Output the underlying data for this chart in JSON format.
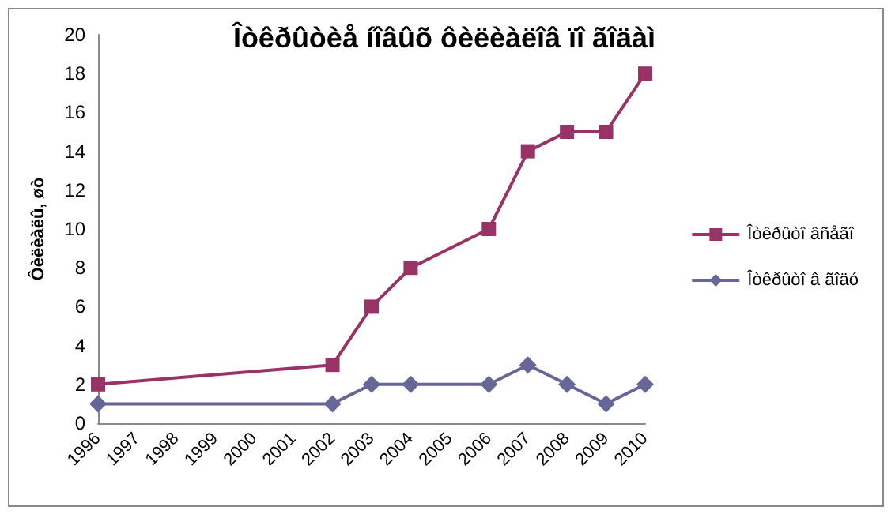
{
  "chart_data": {
    "type": "line",
    "title": "Îòêðûòèå íîâûõ ôèëèàëîâ ïî ãîäàì",
    "ylabel": "Ôèëèàëû, øò",
    "categories": [
      "1996",
      "1997",
      "1998",
      "1999",
      "2000",
      "2001",
      "2002",
      "2003",
      "2004",
      "2005",
      "2006",
      "2007",
      "2008",
      "2009",
      "2010"
    ],
    "series": [
      {
        "name": "Îòêðûòî âñåãî",
        "color": "#993366",
        "marker": "square",
        "values": [
          2,
          null,
          null,
          null,
          null,
          null,
          3,
          6,
          8,
          null,
          10,
          14,
          15,
          15,
          18
        ]
      },
      {
        "name": "Îòêðûòî â ãîäó",
        "color": "#666699",
        "marker": "diamond",
        "values": [
          1,
          null,
          null,
          null,
          null,
          null,
          1,
          2,
          2,
          null,
          2,
          3,
          2,
          1,
          2
        ]
      }
    ],
    "ylim": [
      0,
      20
    ],
    "yticks": [
      0,
      2,
      4,
      6,
      8,
      10,
      12,
      14,
      16,
      18,
      20
    ],
    "grid": false,
    "legend": "right"
  }
}
